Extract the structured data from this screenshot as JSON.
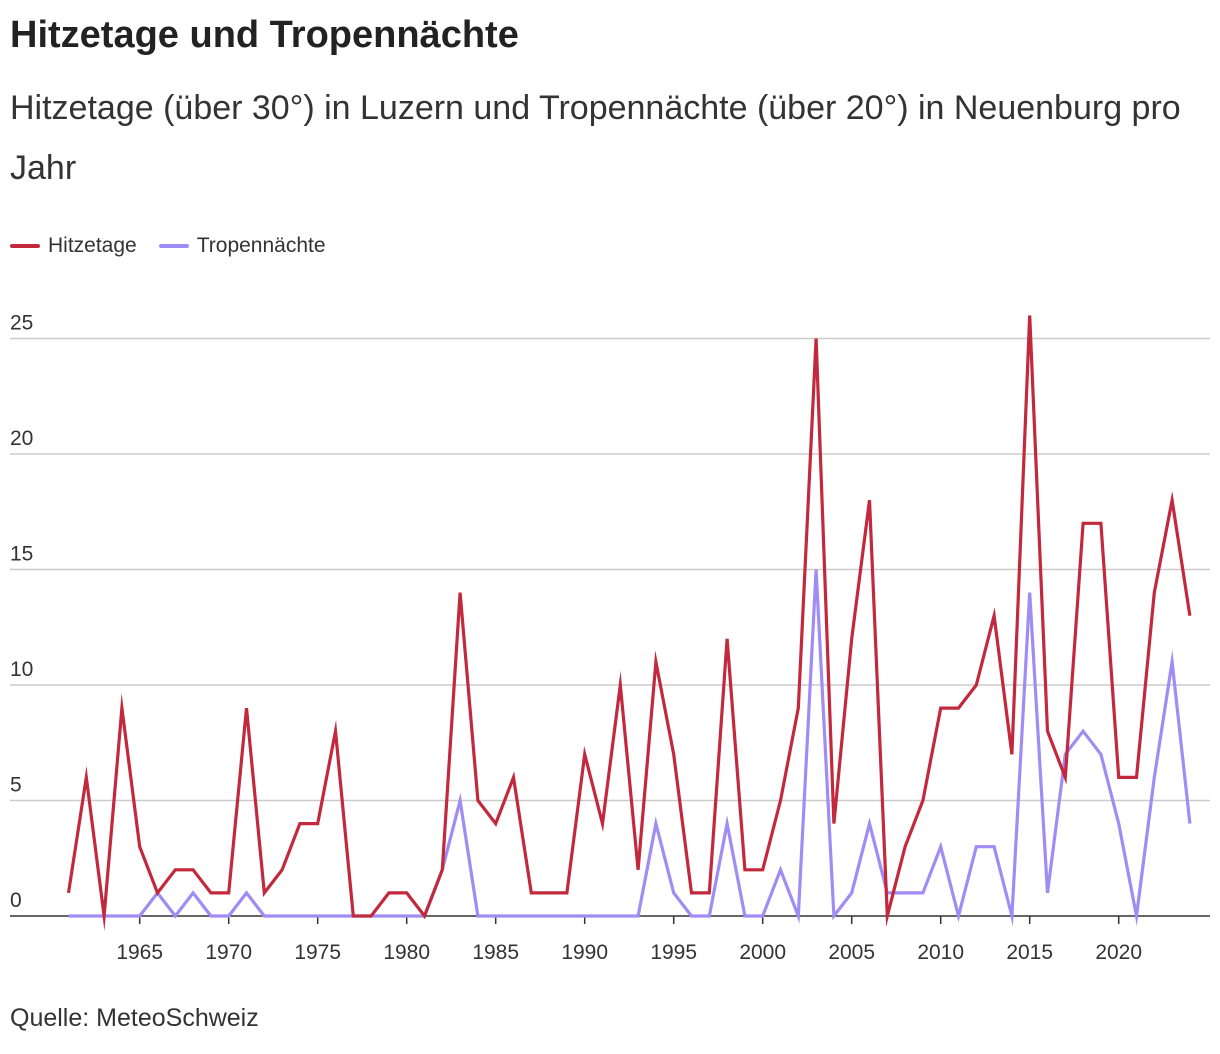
{
  "title": "Hitzetage und Tropennächte",
  "subtitle": "Hitzetage (über 30°) in Luzern und Tropennächte (über 20°) in Neuenburg pro Jahr",
  "source": "Quelle: MeteoSchweiz",
  "colors": {
    "hitzetage": "#c3293d",
    "tropennaechte": "#9f8cf5",
    "grid": "#cccccc",
    "axis": "#333333"
  },
  "chart_data": {
    "type": "line",
    "title": "Hitzetage und Tropennächte",
    "subtitle": "Hitzetage (über 30°) in Luzern und Tropennächte (über 20°) in Neuenburg pro Jahr",
    "xlabel": "",
    "ylabel": "",
    "xlim": [
      1960,
      2025
    ],
    "ylim": [
      0,
      27
    ],
    "grid": true,
    "legend_position": "top-left",
    "x_ticks": [
      "1965",
      "1970",
      "1975",
      "1980",
      "1985",
      "1990",
      "1995",
      "2000",
      "2005",
      "2010",
      "2015",
      "2020"
    ],
    "y_ticks": [
      "0",
      "5",
      "10",
      "15",
      "20",
      "25"
    ],
    "x": [
      1961,
      1962,
      1963,
      1964,
      1965,
      1966,
      1967,
      1968,
      1969,
      1970,
      1971,
      1972,
      1973,
      1974,
      1975,
      1976,
      1977,
      1978,
      1979,
      1980,
      1981,
      1982,
      1983,
      1984,
      1985,
      1986,
      1987,
      1988,
      1989,
      1990,
      1991,
      1992,
      1993,
      1994,
      1995,
      1996,
      1997,
      1998,
      1999,
      2000,
      2001,
      2002,
      2003,
      2004,
      2005,
      2006,
      2007,
      2008,
      2009,
      2010,
      2011,
      2012,
      2013,
      2014,
      2015,
      2016,
      2017,
      2018,
      2019,
      2020,
      2021,
      2022,
      2023,
      2024
    ],
    "series": [
      {
        "name": "Hitzetage",
        "key": "hitzetage",
        "values": [
          1,
          6,
          0,
          9,
          3,
          1,
          2,
          2,
          1,
          1,
          9,
          1,
          2,
          4,
          4,
          8,
          0,
          0,
          1,
          1,
          0,
          2,
          14,
          5,
          4,
          6,
          1,
          1,
          1,
          7,
          4,
          10,
          2,
          11,
          7,
          1,
          1,
          12,
          2,
          2,
          5,
          9,
          25,
          4,
          12,
          18,
          0,
          3,
          5,
          9,
          9,
          10,
          13,
          7,
          26,
          8,
          6,
          17,
          17,
          6,
          6,
          14,
          18,
          13
        ]
      },
      {
        "name": "Tropennächte",
        "key": "tropennaechte",
        "values": [
          0,
          0,
          0,
          0,
          0,
          1,
          0,
          1,
          0,
          0,
          1,
          0,
          0,
          0,
          0,
          0,
          0,
          0,
          0,
          0,
          0,
          2,
          5,
          0,
          0,
          0,
          0,
          0,
          0,
          0,
          0,
          0,
          0,
          4,
          1,
          0,
          0,
          4,
          0,
          0,
          2,
          0,
          15,
          0,
          1,
          4,
          1,
          1,
          1,
          3,
          0,
          3,
          3,
          0,
          14,
          1,
          7,
          8,
          7,
          4,
          0,
          6,
          11,
          4
        ]
      }
    ]
  }
}
